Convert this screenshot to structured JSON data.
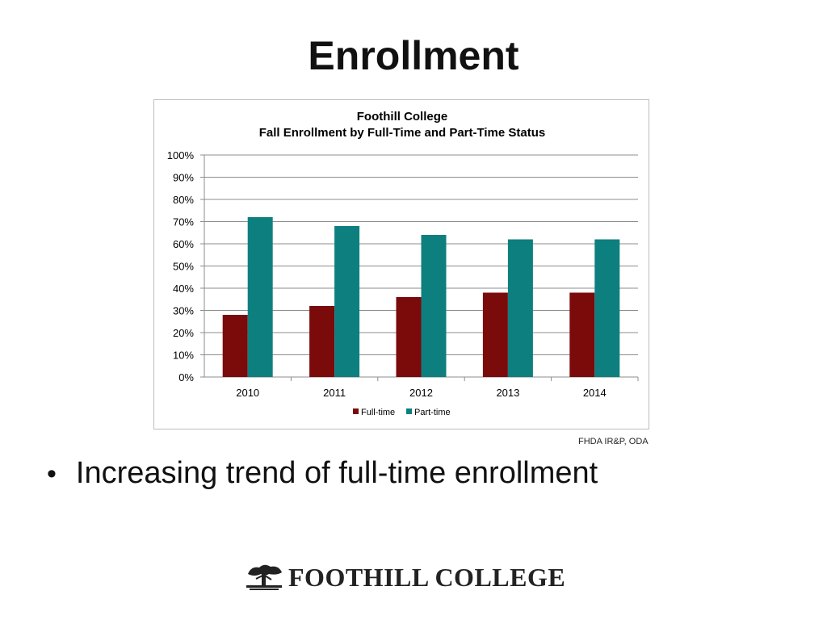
{
  "slide": {
    "title": "Enrollment",
    "bullet": "Increasing trend of full-time enrollment",
    "source": "FHDA IR&P, ODA",
    "logo_text": "FOOTHILL COLLEGE"
  },
  "chart_data": {
    "type": "bar",
    "title": "Foothill College",
    "subtitle": "Fall Enrollment by Full-Time and Part-Time Status",
    "categories": [
      "2010",
      "2011",
      "2012",
      "2013",
      "2014"
    ],
    "series": [
      {
        "name": "Full-time",
        "values": [
          28,
          32,
          36,
          38,
          38
        ],
        "color": "#7b0a0a"
      },
      {
        "name": "Part-time",
        "values": [
          72,
          68,
          64,
          62,
          62
        ],
        "color": "#0e7f7f"
      }
    ],
    "ylim": [
      0,
      100
    ],
    "yticks": [
      "0%",
      "10%",
      "20%",
      "30%",
      "40%",
      "50%",
      "60%",
      "70%",
      "80%",
      "90%",
      "100%"
    ],
    "unit": "%",
    "grid": true,
    "legend_position": "bottom"
  }
}
